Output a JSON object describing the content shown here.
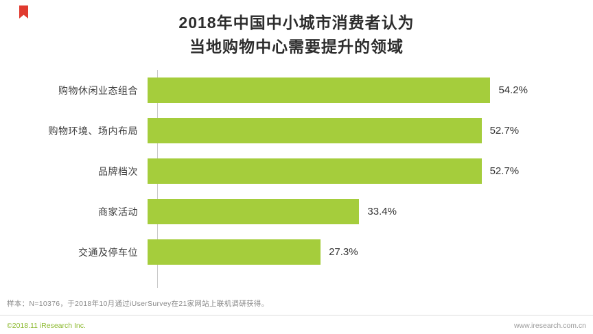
{
  "title": {
    "line1": "2018年中国中小城市消费者认为",
    "line2": "当地购物中心需要提升的领域"
  },
  "chart_data": {
    "type": "bar",
    "orientation": "horizontal",
    "title": "2018年中国中小城市消费者认为当地购物中心需要提升的领域",
    "categories": [
      "购物休闲业态组合",
      "购物环境、场内布局",
      "品牌档次",
      "商家活动",
      "交通及停车位"
    ],
    "values": [
      54.2,
      52.7,
      52.7,
      33.4,
      27.3
    ],
    "value_labels": [
      "54.2%",
      "52.7%",
      "52.7%",
      "33.4%",
      "27.3%"
    ],
    "xlim": [
      0,
      60
    ],
    "bar_color": "#a5cd3c",
    "grid": false,
    "legend": "none"
  },
  "note": "样本：N=10376，于2018年10月通过iUserSurvey在21家网站上联机调研获得。",
  "footer": {
    "copyright": "©2018.11 iResearch Inc.",
    "website": "www.iresearch.com.cn"
  }
}
